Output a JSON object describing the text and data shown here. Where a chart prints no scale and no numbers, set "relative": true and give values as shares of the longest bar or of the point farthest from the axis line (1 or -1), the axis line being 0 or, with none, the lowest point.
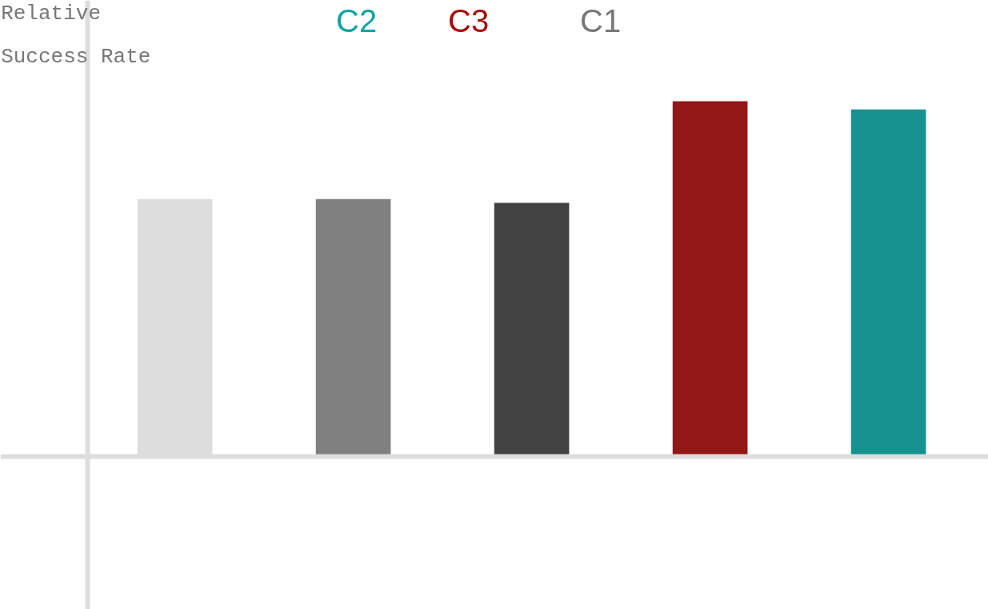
{
  "chart_data": {
    "type": "bar",
    "ylabel": "Relative\nSuccess Rate",
    "categories": [
      null,
      null,
      null,
      null,
      null
    ],
    "values": [
      0.725,
      0.725,
      0.714,
      1,
      0.977
    ],
    "colors": [
      "#dddddd",
      "#808080",
      "#424242",
      "#921818",
      "#16928f"
    ],
    "relative": true,
    "grid": false,
    "annotations": [
      "C2",
      "C3",
      "C1"
    ]
  }
}
